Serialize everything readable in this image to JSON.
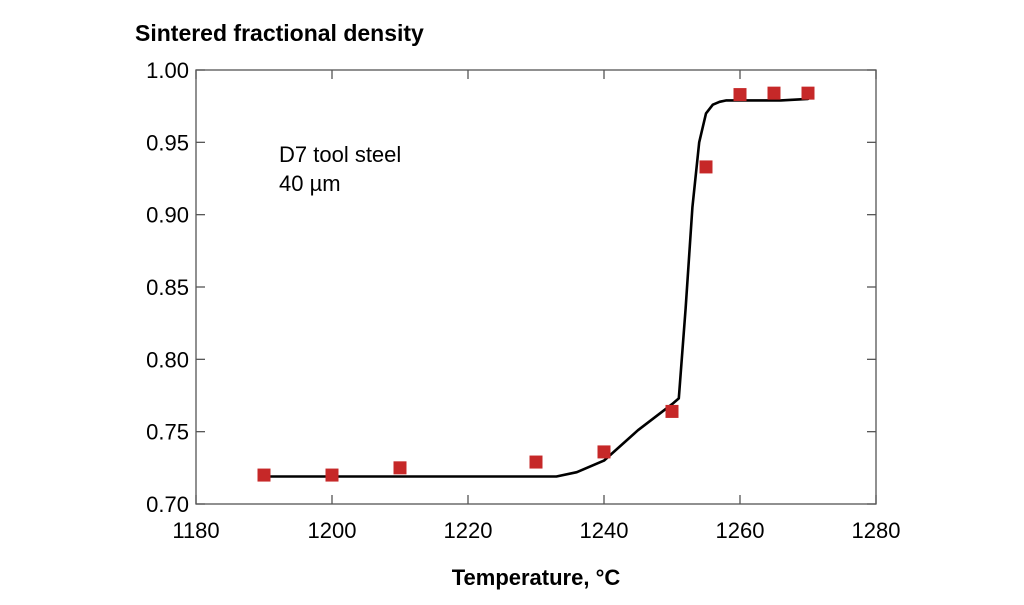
{
  "chart_data": {
    "type": "scatter",
    "title": "Sintered fractional density",
    "xlabel": "Temperature, °C",
    "ylabel": "",
    "xlim": [
      1180,
      1280
    ],
    "ylim": [
      0.7,
      1.0
    ],
    "xticks": [
      1180,
      1200,
      1220,
      1240,
      1260,
      1280
    ],
    "xtick_labels": [
      "1180",
      "1200",
      "1220",
      "1240",
      "1260",
      "1280"
    ],
    "yticks": [
      0.7,
      0.75,
      0.8,
      0.85,
      0.9,
      0.95,
      1.0
    ],
    "ytick_labels": [
      "0.70",
      "0.75",
      "0.80",
      "0.85",
      "0.90",
      "0.95",
      "1.00"
    ],
    "grid": false,
    "annotations": [
      "D7 tool steel",
      "40 µm"
    ],
    "series": [
      {
        "kind": "markers",
        "marker": "square",
        "color": "#c62828",
        "x": [
          1190,
          1200,
          1210,
          1230,
          1240,
          1250,
          1255,
          1260,
          1265,
          1270
        ],
        "y": [
          0.72,
          0.72,
          0.725,
          0.729,
          0.736,
          0.764,
          0.933,
          0.983,
          0.984,
          0.984
        ]
      },
      {
        "kind": "line",
        "color": "#000000",
        "x": [
          1190,
          1233,
          1236,
          1240,
          1245,
          1250,
          1251,
          1252,
          1253,
          1254,
          1255,
          1256,
          1257,
          1258,
          1260,
          1262,
          1266,
          1270
        ],
        "y": [
          0.719,
          0.719,
          0.722,
          0.73,
          0.751,
          0.769,
          0.773,
          0.835,
          0.905,
          0.95,
          0.97,
          0.976,
          0.978,
          0.979,
          0.979,
          0.979,
          0.979,
          0.98
        ]
      }
    ]
  }
}
